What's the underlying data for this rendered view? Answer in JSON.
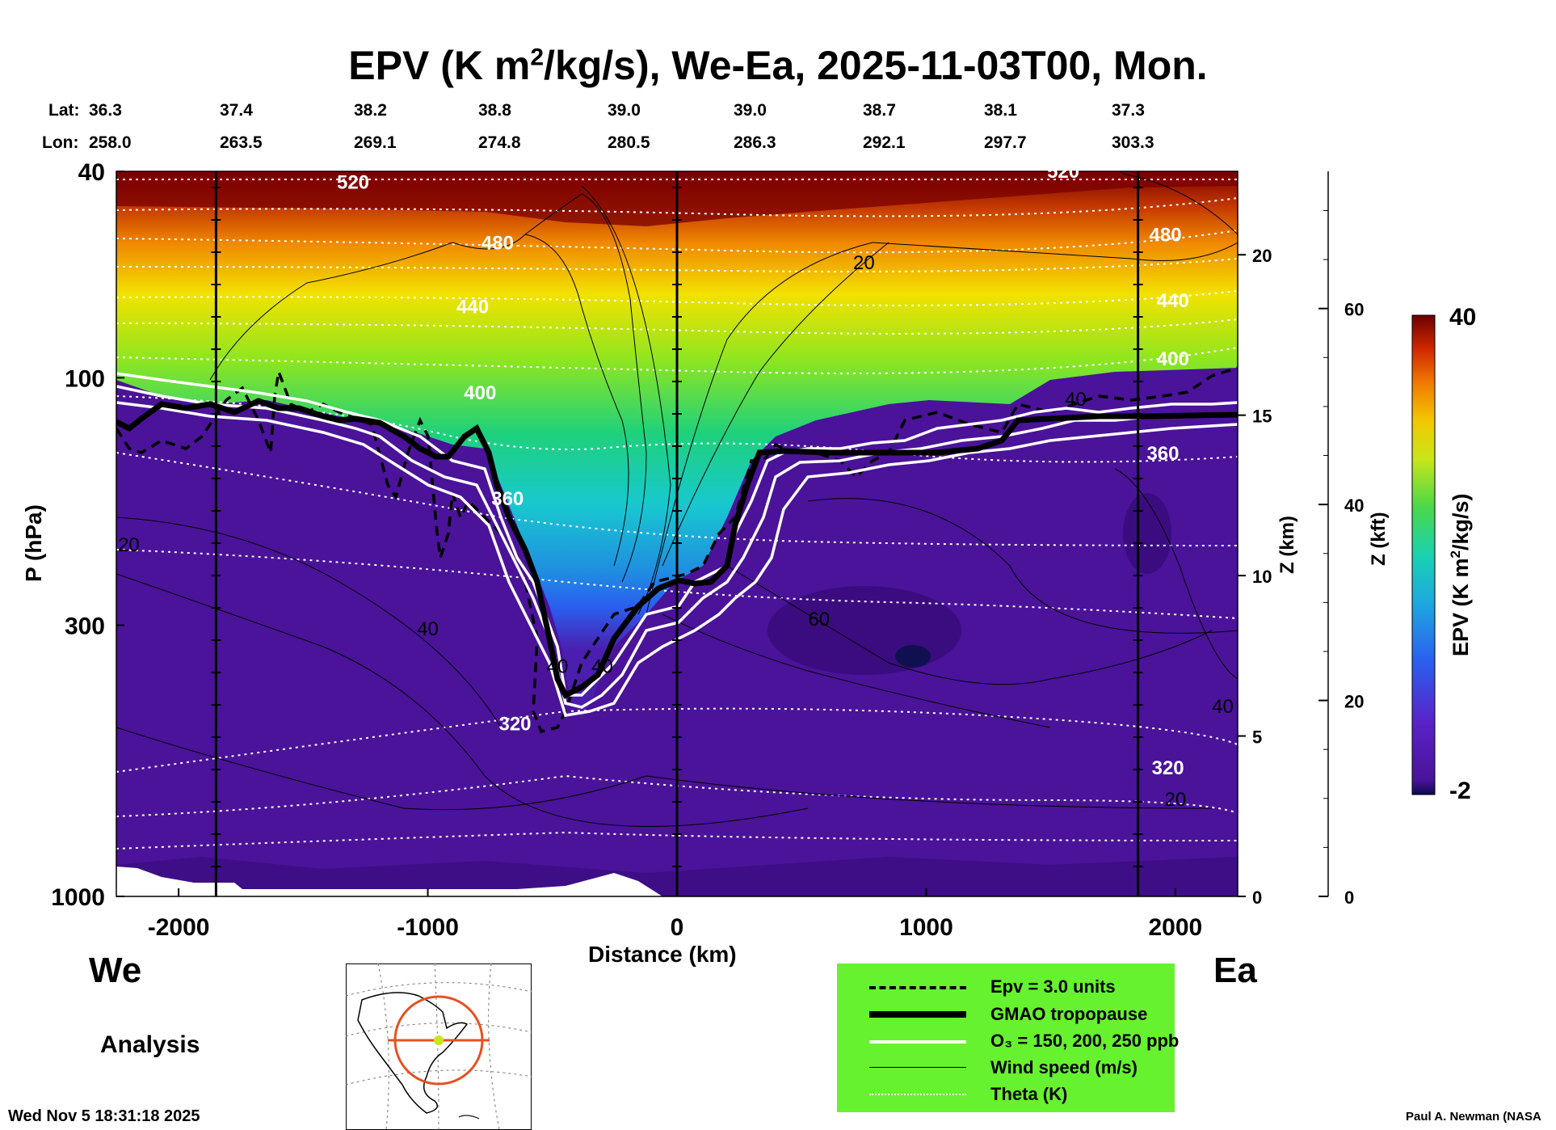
{
  "title_parts": {
    "pre": "EPV (K m",
    "sup": "2",
    "post": "/kg/s), We-Ea, 2025-11-03T00, Mon."
  },
  "lat_label": "Lat:",
  "lon_label": "Lon:",
  "lats": [
    "36.3",
    "37.4",
    "38.2",
    "38.8",
    "39.0",
    "39.0",
    "38.7",
    "38.1",
    "37.3"
  ],
  "lons": [
    "258.0",
    "263.5",
    "269.1",
    "274.8",
    "280.5",
    "286.3",
    "292.1",
    "297.7",
    "303.3"
  ],
  "left_label": "We",
  "right_label": "Ea",
  "analysis_label": "Analysis",
  "timestamp": "Wed Nov  5 18:31:18 2025",
  "credit": "Paul A. Newman (NASA",
  "colorbar": {
    "label_pre": "EPV (K m",
    "label_sup": "2",
    "label_post": "/kg/s)",
    "max_label": "40",
    "min_label": "-2"
  },
  "legend": [
    {
      "style": "dashed",
      "text": "Epv = 3.0 units"
    },
    {
      "style": "thick",
      "text": "GMAO tropopause"
    },
    {
      "style": "white",
      "text": "O₃ = 150, 200, 250 ppb"
    },
    {
      "style": "thin",
      "text": "Wind speed (m/s)"
    },
    {
      "style": "dotted",
      "text": "Theta (K)"
    }
  ],
  "colors": {
    "legend_bg": "#66f22e",
    "trop_fill": "#4a0fa0",
    "strat_high": "#6b0000"
  },
  "chart_data": {
    "type": "heatmap",
    "title": "EPV (K m2/kg/s), We-Ea, 2025-11-03T00, Mon.",
    "xlabel": "Distance (km)",
    "ylabel": "P (hPa)",
    "xlim": [
      -2250,
      2250
    ],
    "ylim": [
      1000,
      40
    ],
    "x_ticks": [
      -2000,
      -1000,
      0,
      1000,
      2000
    ],
    "x_tick_labels": [
      "-2000",
      "-1000",
      "0",
      "1000",
      "2000"
    ],
    "y_ticks": [
      40,
      100,
      300,
      1000
    ],
    "y_tick_labels": [
      "40",
      "100",
      "300",
      "1000"
    ],
    "z_km_label": "Z (km)",
    "z_km_ticks": [
      0,
      5,
      10,
      15,
      20
    ],
    "z_km_tick_labels": [
      "0",
      "5",
      "10",
      "15",
      "20"
    ],
    "z_kft_label": "Z (kft)",
    "z_kft_ticks": [
      0,
      20,
      40,
      60
    ],
    "z_kft_tick_labels": [
      "0",
      "20",
      "40",
      "60"
    ],
    "colorbar_range": [
      -2,
      40
    ],
    "vertical_lines_km": [
      -1850,
      0,
      1850
    ],
    "theta_contour_labels": [
      {
        "text": "520",
        "x": -1300,
        "p": 42
      },
      {
        "text": "480",
        "x": -720,
        "p": 55
      },
      {
        "text": "440",
        "x": -820,
        "p": 73
      },
      {
        "text": "400",
        "x": -790,
        "p": 107
      },
      {
        "text": "360",
        "x": -680,
        "p": 171
      },
      {
        "text": "320",
        "x": -650,
        "p": 465
      },
      {
        "text": "520",
        "x": 1550,
        "p": 40
      },
      {
        "text": "480",
        "x": 1960,
        "p": 53
      },
      {
        "text": "440",
        "x": 1990,
        "p": 71
      },
      {
        "text": "400",
        "x": 1990,
        "p": 92
      },
      {
        "text": "360",
        "x": 1950,
        "p": 140
      },
      {
        "text": "320",
        "x": 1970,
        "p": 565
      }
    ],
    "wind_contour_labels": [
      {
        "text": "20",
        "x": -2200,
        "p": 210
      },
      {
        "text": "40",
        "x": -1000,
        "p": 305
      },
      {
        "text": "20",
        "x": 750,
        "p": 60
      },
      {
        "text": "60",
        "x": 570,
        "p": 292
      },
      {
        "text": "40",
        "x": 2190,
        "p": 430
      },
      {
        "text": "20",
        "x": 2000,
        "p": 650
      },
      {
        "text": "40",
        "x": -480,
        "p": 360
      },
      {
        "text": "40",
        "x": -300,
        "p": 360
      },
      {
        "text": "40",
        "x": 1600,
        "p": 110
      }
    ]
  }
}
